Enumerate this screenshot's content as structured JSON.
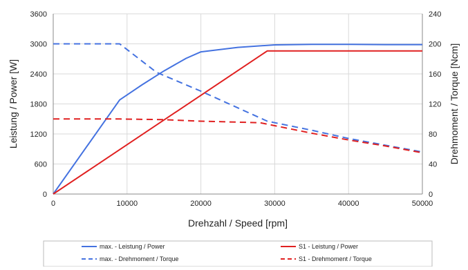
{
  "chart_data": {
    "type": "line",
    "xlabel": "Drehzahl / Speed [rpm]",
    "ylabel_left": "Leistung / Power [W]",
    "ylabel_right": "Drehmoment / Torque [Ncm]",
    "xlim": [
      0,
      50000
    ],
    "ylim_left": [
      0,
      3600
    ],
    "ylim_right": [
      0,
      240
    ],
    "x_ticks": [
      0,
      10000,
      20000,
      30000,
      40000,
      50000
    ],
    "y_left_ticks": [
      0,
      600,
      1200,
      1800,
      2400,
      3000,
      3600
    ],
    "y_right_ticks": [
      0,
      40,
      80,
      120,
      160,
      200,
      240
    ],
    "grid": true,
    "legend_position": "bottom",
    "series": [
      {
        "name": "max. - Leistung / Power",
        "axis": "left",
        "color": "#4472e0",
        "dash": false,
        "points": [
          [
            0,
            0
          ],
          [
            9000,
            1880
          ],
          [
            12000,
            2180
          ],
          [
            15000,
            2460
          ],
          [
            18000,
            2710
          ],
          [
            20000,
            2840
          ],
          [
            25000,
            2930
          ],
          [
            30000,
            2980
          ],
          [
            35000,
            2990
          ],
          [
            40000,
            2990
          ],
          [
            45000,
            2985
          ],
          [
            50000,
            2985
          ]
        ]
      },
      {
        "name": "S1 - Leistung / Power",
        "axis": "left",
        "color": "#e02020",
        "dash": false,
        "points": [
          [
            0,
            0
          ],
          [
            29000,
            2860
          ],
          [
            50000,
            2860
          ]
        ]
      },
      {
        "name": "max. - Drehmoment / Torque",
        "axis": "right",
        "color": "#4472e0",
        "dash": true,
        "points": [
          [
            0,
            200
          ],
          [
            9000,
            200
          ],
          [
            14000,
            162
          ],
          [
            20000,
            137
          ],
          [
            29000,
            97
          ],
          [
            35000,
            85
          ],
          [
            40000,
            74
          ],
          [
            45000,
            65
          ],
          [
            50000,
            56
          ]
        ]
      },
      {
        "name": "S1 - Drehmoment / Torque",
        "axis": "right",
        "color": "#e02020",
        "dash": true,
        "points": [
          [
            0,
            100
          ],
          [
            9000,
            100
          ],
          [
            15000,
            99
          ],
          [
            20000,
            97
          ],
          [
            28000,
            95
          ],
          [
            30000,
            91
          ],
          [
            35000,
            81
          ],
          [
            40000,
            72
          ],
          [
            45000,
            64
          ],
          [
            50000,
            55
          ]
        ]
      }
    ]
  }
}
